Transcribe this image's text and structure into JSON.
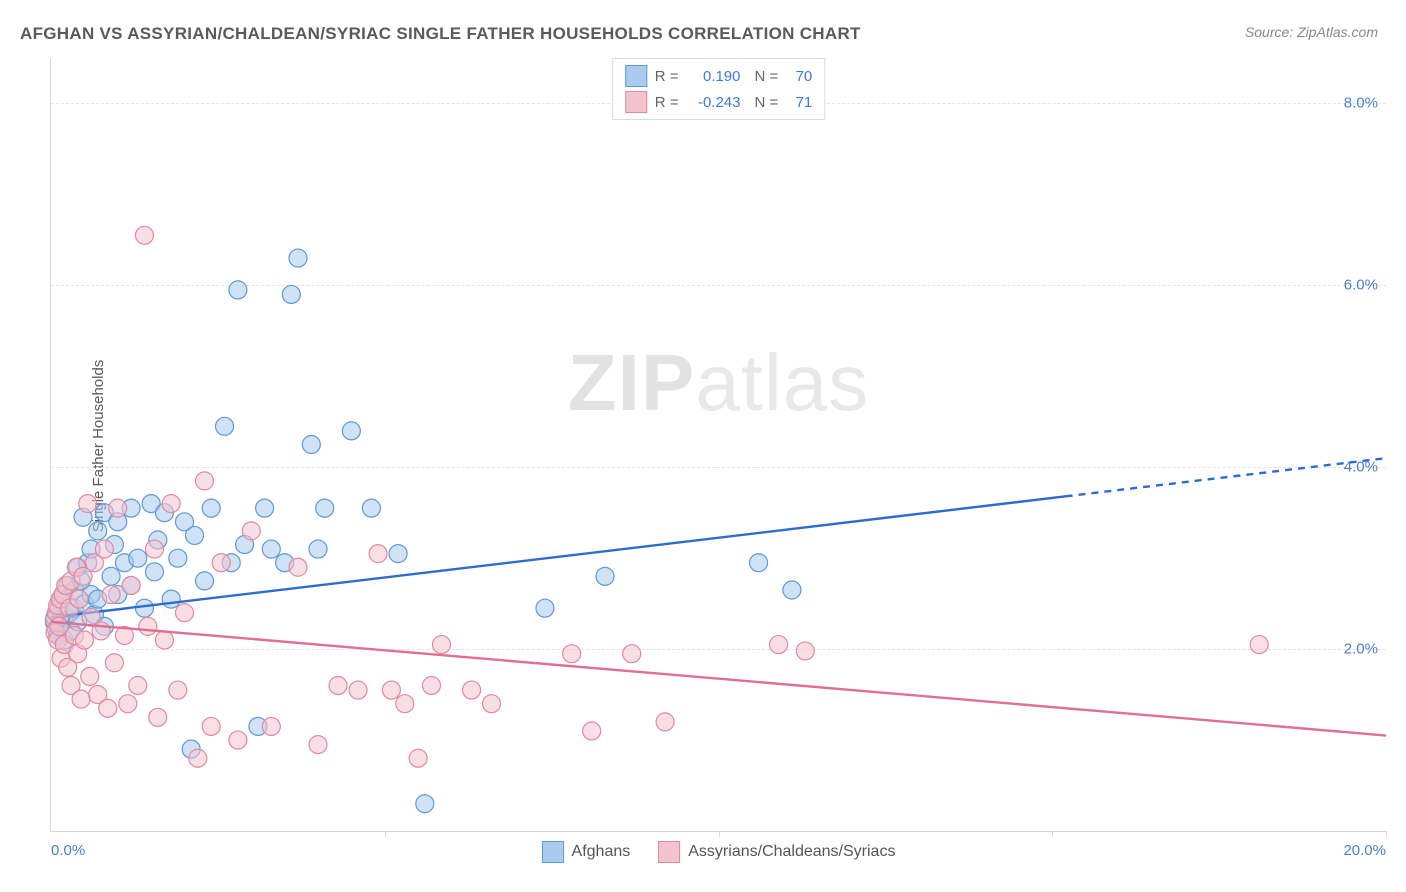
{
  "title": "AFGHAN VS ASSYRIAN/CHALDEAN/SYRIAC SINGLE FATHER HOUSEHOLDS CORRELATION CHART",
  "source_prefix": "Source: ",
  "source_name": "ZipAtlas.com",
  "ylabel": "Single Father Households",
  "watermark_a": "ZIP",
  "watermark_b": "atlas",
  "chart": {
    "type": "scatter",
    "background_color": "#ffffff",
    "grid_color": "#e4e4e4",
    "axis_color": "#d8d8d8",
    "xlim": [
      0,
      20
    ],
    "ylim": [
      0,
      8.5
    ],
    "ytick_values": [
      2.0,
      4.0,
      6.0,
      8.0
    ],
    "ytick_labels": [
      "2.0%",
      "4.0%",
      "6.0%",
      "8.0%"
    ],
    "ytick_color": "#4a7ecc",
    "x_left_label": "0.0%",
    "x_right_label": "20.0%",
    "x_left_color": "#4a7ecc",
    "x_right_color": "#4a7ecc",
    "x_vtick_positions": [
      5,
      10,
      15,
      20
    ],
    "label_fontsize": 15,
    "title_fontsize": 17,
    "marker_radius": 9,
    "marker_fill_opacity": 0.55,
    "marker_stroke_width": 1.2,
    "series": [
      {
        "id": "afghans",
        "label": "Afghans",
        "color_fill": "#a9cbed",
        "color_stroke": "#5d99d6",
        "trend_color": "#2e6bd1",
        "trend_width": 2.4,
        "trend_y_at_xmin": 2.35,
        "trend_y_at_xmax": 4.1,
        "trend_solid_until_x": 15.2,
        "R_label": "R =",
        "R_value": "0.190",
        "N_label": "N =",
        "N_value": "70",
        "points": [
          [
            0.05,
            2.3
          ],
          [
            0.06,
            2.35
          ],
          [
            0.08,
            2.22
          ],
          [
            0.1,
            2.4
          ],
          [
            0.1,
            2.15
          ],
          [
            0.12,
            2.45
          ],
          [
            0.15,
            2.55
          ],
          [
            0.15,
            2.28
          ],
          [
            0.18,
            2.6
          ],
          [
            0.2,
            2.35
          ],
          [
            0.2,
            2.1
          ],
          [
            0.25,
            2.7
          ],
          [
            0.28,
            2.4
          ],
          [
            0.3,
            2.2
          ],
          [
            0.35,
            2.65
          ],
          [
            0.35,
            2.45
          ],
          [
            0.4,
            2.9
          ],
          [
            0.4,
            2.3
          ],
          [
            0.45,
            2.75
          ],
          [
            0.48,
            3.45
          ],
          [
            0.5,
            2.5
          ],
          [
            0.55,
            2.95
          ],
          [
            0.6,
            2.6
          ],
          [
            0.6,
            3.1
          ],
          [
            0.65,
            2.38
          ],
          [
            0.7,
            3.3
          ],
          [
            0.7,
            2.55
          ],
          [
            0.8,
            2.25
          ],
          [
            0.8,
            3.5
          ],
          [
            0.9,
            2.8
          ],
          [
            0.95,
            3.15
          ],
          [
            1.0,
            2.6
          ],
          [
            1.0,
            3.4
          ],
          [
            1.1,
            2.95
          ],
          [
            1.2,
            2.7
          ],
          [
            1.2,
            3.55
          ],
          [
            1.3,
            3.0
          ],
          [
            1.4,
            2.45
          ],
          [
            1.5,
            3.6
          ],
          [
            1.55,
            2.85
          ],
          [
            1.6,
            3.2
          ],
          [
            1.7,
            3.5
          ],
          [
            1.8,
            2.55
          ],
          [
            1.9,
            3.0
          ],
          [
            2.0,
            3.4
          ],
          [
            2.1,
            0.9
          ],
          [
            2.15,
            3.25
          ],
          [
            2.3,
            2.75
          ],
          [
            2.4,
            3.55
          ],
          [
            2.6,
            4.45
          ],
          [
            2.7,
            2.95
          ],
          [
            2.8,
            5.95
          ],
          [
            2.9,
            3.15
          ],
          [
            3.1,
            1.15
          ],
          [
            3.2,
            3.55
          ],
          [
            3.3,
            3.1
          ],
          [
            3.5,
            2.95
          ],
          [
            3.6,
            5.9
          ],
          [
            3.7,
            6.3
          ],
          [
            3.9,
            4.25
          ],
          [
            4.0,
            3.1
          ],
          [
            4.1,
            3.55
          ],
          [
            4.5,
            4.4
          ],
          [
            4.8,
            3.55
          ],
          [
            5.2,
            3.05
          ],
          [
            5.6,
            0.3
          ],
          [
            7.4,
            2.45
          ],
          [
            8.3,
            2.8
          ],
          [
            10.6,
            2.95
          ],
          [
            11.1,
            2.65
          ]
        ]
      },
      {
        "id": "assyrians",
        "label": "Assyrians/Chaldeans/Syriacs",
        "color_fill": "#f4c3cf",
        "color_stroke": "#e089a0",
        "trend_color": "#e06f93",
        "trend_width": 2.4,
        "trend_y_at_xmin": 2.3,
        "trend_y_at_xmax": 1.05,
        "trend_solid_until_x": 20,
        "R_label": "R =",
        "R_value": "-0.243",
        "N_label": "N =",
        "N_value": "71",
        "points": [
          [
            0.05,
            2.32
          ],
          [
            0.06,
            2.18
          ],
          [
            0.08,
            2.4
          ],
          [
            0.1,
            2.1
          ],
          [
            0.1,
            2.48
          ],
          [
            0.12,
            2.25
          ],
          [
            0.14,
            2.55
          ],
          [
            0.15,
            1.9
          ],
          [
            0.18,
            2.6
          ],
          [
            0.2,
            2.05
          ],
          [
            0.22,
            2.7
          ],
          [
            0.25,
            1.8
          ],
          [
            0.28,
            2.45
          ],
          [
            0.3,
            2.75
          ],
          [
            0.3,
            1.6
          ],
          [
            0.35,
            2.15
          ],
          [
            0.38,
            2.9
          ],
          [
            0.4,
            1.95
          ],
          [
            0.42,
            2.55
          ],
          [
            0.45,
            1.45
          ],
          [
            0.48,
            2.8
          ],
          [
            0.5,
            2.1
          ],
          [
            0.55,
            3.6
          ],
          [
            0.58,
            1.7
          ],
          [
            0.6,
            2.35
          ],
          [
            0.65,
            2.95
          ],
          [
            0.7,
            1.5
          ],
          [
            0.75,
            2.2
          ],
          [
            0.8,
            3.1
          ],
          [
            0.85,
            1.35
          ],
          [
            0.9,
            2.6
          ],
          [
            0.95,
            1.85
          ],
          [
            1.0,
            3.55
          ],
          [
            1.1,
            2.15
          ],
          [
            1.15,
            1.4
          ],
          [
            1.2,
            2.7
          ],
          [
            1.3,
            1.6
          ],
          [
            1.4,
            6.55
          ],
          [
            1.45,
            2.25
          ],
          [
            1.55,
            3.1
          ],
          [
            1.6,
            1.25
          ],
          [
            1.7,
            2.1
          ],
          [
            1.8,
            3.6
          ],
          [
            1.9,
            1.55
          ],
          [
            2.0,
            2.4
          ],
          [
            2.2,
            0.8
          ],
          [
            2.3,
            3.85
          ],
          [
            2.4,
            1.15
          ],
          [
            2.55,
            2.95
          ],
          [
            2.8,
            1.0
          ],
          [
            3.0,
            3.3
          ],
          [
            3.3,
            1.15
          ],
          [
            3.7,
            2.9
          ],
          [
            4.0,
            0.95
          ],
          [
            4.3,
            1.6
          ],
          [
            4.6,
            1.55
          ],
          [
            4.9,
            3.05
          ],
          [
            5.1,
            1.55
          ],
          [
            5.3,
            1.4
          ],
          [
            5.5,
            0.8
          ],
          [
            5.7,
            1.6
          ],
          [
            5.85,
            2.05
          ],
          [
            6.3,
            1.55
          ],
          [
            6.6,
            1.4
          ],
          [
            7.8,
            1.95
          ],
          [
            8.1,
            1.1
          ],
          [
            8.7,
            1.95
          ],
          [
            9.2,
            1.2
          ],
          [
            10.9,
            2.05
          ],
          [
            11.3,
            1.98
          ],
          [
            18.1,
            2.05
          ]
        ]
      }
    ]
  },
  "legend_top_text_color": "#666",
  "legend_top_value_color": "#3a7ad9"
}
